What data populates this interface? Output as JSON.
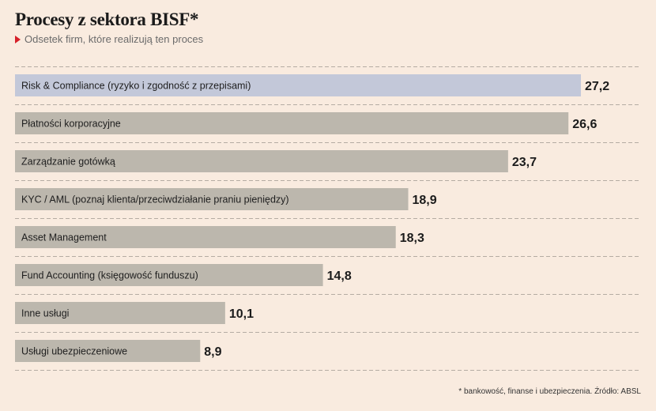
{
  "header": {
    "title": "Procesy z sektora BISF*",
    "subtitle": "Odsetek firm, które realizują ten proces"
  },
  "footnote": "* bankowość, finanse i ubezpieczenia. Źródło: ABSL",
  "colors": {
    "background": "#f9ebdf",
    "bar_default": "#bcb7ad",
    "bar_highlight": "#c3c8d9",
    "accent": "#d6202a",
    "grid": "#b5aca3"
  },
  "chart_data": {
    "type": "bar",
    "orientation": "horizontal",
    "categories": [
      "Risk & Compliance (ryzyko i zgodność z przepisami)",
      "Płatności korporacyjne",
      "Zarządzanie gotówką",
      "KYC / AML (poznaj klienta/przeciwdziałanie praniu pieniędzy)",
      "Asset Management",
      "Fund Accounting (księgowość funduszu)",
      "Inne usługi",
      "Usługi ubezpieczeniowe"
    ],
    "values": [
      27.2,
      26.6,
      23.7,
      18.9,
      18.3,
      14.8,
      10.1,
      8.9
    ],
    "value_labels": [
      "27,2",
      "26,6",
      "23,7",
      "18,9",
      "18,3",
      "14,8",
      "10,1",
      "8,9"
    ],
    "highlighted_index": 0,
    "xlim": [
      0,
      27.2
    ],
    "grid": "dashed horizontal separators",
    "legend": "none"
  }
}
